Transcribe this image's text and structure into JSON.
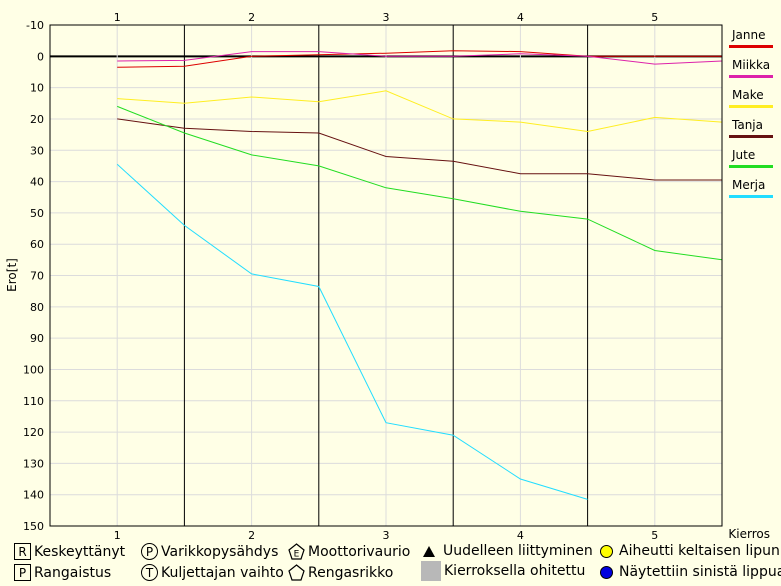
{
  "chart_data": {
    "type": "line",
    "ylabel": "Ero[t]",
    "xlabel": "Kierros",
    "ylim": [
      -10,
      150
    ],
    "y_inverted": true,
    "yticks": [
      -10,
      0,
      10,
      20,
      30,
      40,
      50,
      60,
      70,
      80,
      90,
      100,
      110,
      120,
      130,
      140,
      150
    ],
    "xlim": [
      0.5,
      5.5
    ],
    "lap_ticks": [
      "1",
      "2",
      "3",
      "4",
      "5"
    ],
    "grid": true,
    "series": [
      {
        "name": "Janne",
        "color": "#DD0000",
        "points": [
          [
            1,
            3.5
          ],
          [
            1.5,
            3.2
          ],
          [
            2,
            0
          ],
          [
            3,
            -1
          ],
          [
            3.5,
            -1.8
          ],
          [
            4,
            -1.5
          ],
          [
            4.5,
            0
          ],
          [
            5,
            0
          ],
          [
            5.5,
            0
          ]
        ]
      },
      {
        "name": "Miikka",
        "color": "#DD22AA",
        "points": [
          [
            1,
            1.5
          ],
          [
            1.5,
            1.3
          ],
          [
            2,
            -1.5
          ],
          [
            2.5,
            -1.5
          ],
          [
            3,
            0
          ],
          [
            3.5,
            0
          ],
          [
            4,
            -0.8
          ],
          [
            4.5,
            0
          ],
          [
            5,
            2.5
          ],
          [
            5.5,
            1.5
          ]
        ]
      },
      {
        "name": "Make",
        "color": "#FFEE22",
        "points": [
          [
            1,
            13.5
          ],
          [
            1.5,
            15
          ],
          [
            2,
            13
          ],
          [
            2.5,
            14.5
          ],
          [
            3,
            11
          ],
          [
            3.5,
            20
          ],
          [
            4,
            21
          ],
          [
            4.5,
            24
          ],
          [
            5,
            19.5
          ],
          [
            5.5,
            21
          ]
        ]
      },
      {
        "name": "Tanja",
        "color": "#661111",
        "points": [
          [
            1,
            20
          ],
          [
            1.5,
            23
          ],
          [
            2,
            24
          ],
          [
            2.5,
            24.5
          ],
          [
            3,
            32
          ],
          [
            3.5,
            33.5
          ],
          [
            4,
            37.5
          ],
          [
            4.5,
            37.5
          ],
          [
            5,
            39.5
          ],
          [
            5.5,
            39.5
          ]
        ]
      },
      {
        "name": "Jute",
        "color": "#22DD22",
        "points": [
          [
            1,
            16
          ],
          [
            1.5,
            24.5
          ],
          [
            2,
            31.5
          ],
          [
            2.5,
            35
          ],
          [
            3,
            42
          ],
          [
            3.5,
            45.5
          ],
          [
            4,
            49.5
          ],
          [
            4.5,
            52
          ],
          [
            5,
            62
          ],
          [
            5.5,
            65
          ]
        ]
      },
      {
        "name": "Merja",
        "color": "#22DDFF",
        "points": [
          [
            1,
            34.5
          ],
          [
            1.5,
            54
          ],
          [
            2,
            69.5
          ],
          [
            2.5,
            73.5
          ],
          [
            3,
            117
          ],
          [
            3.5,
            121
          ],
          [
            4,
            135
          ],
          [
            4.5,
            141.5
          ]
        ]
      }
    ]
  },
  "legend": {
    "retired": "Keskeyttänyt",
    "penalty": "Rangaistus",
    "pit_stop": "Varikkopysähdys",
    "driver_change": "Kuljettajan vaihto",
    "engine_failure": "Moottorivaurio",
    "tire_failure": "Rengasrikko",
    "rejoin": "Uudelleen liittyminen",
    "lapped": "Kierroksella ohitettu",
    "yellow_flag": "Aiheutti keltaisen lipun",
    "blue_flag": "Näytettiin sinistä lippua",
    "icon_r": "R",
    "icon_p": "P",
    "icon_pit": "P",
    "icon_t": "T",
    "icon_e": "E"
  },
  "colors": {
    "yellow_dot": "#FFFF00",
    "blue_dot": "#0000DD",
    "lapped_block": "#B8B8B8"
  }
}
